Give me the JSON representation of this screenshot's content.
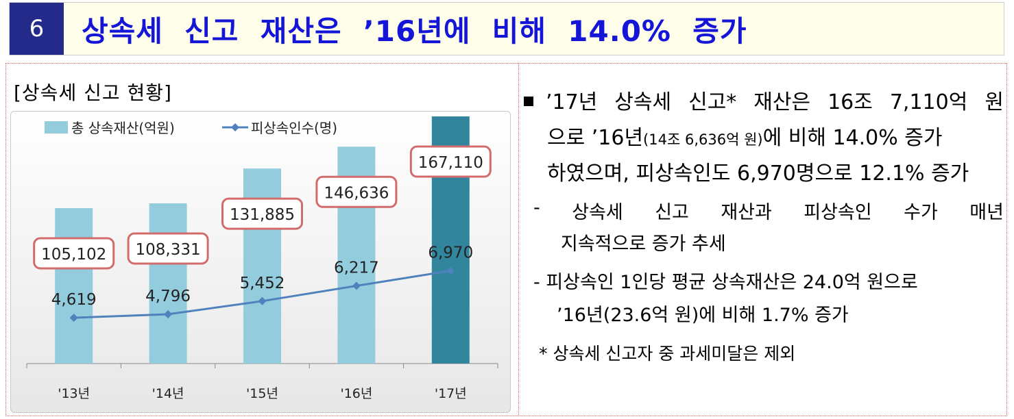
{
  "header": {
    "number": "6",
    "title": "상속세  신고  재산은  ’16년에  비해  14.0%  증가"
  },
  "chart_caption": "[상속세  신고  현황]",
  "chart_data": {
    "type": "bar",
    "categories": [
      "'13년",
      "'14년",
      "'15년",
      "'16년",
      "'17년"
    ],
    "series": [
      {
        "name": "총 상속재산(억원)",
        "type": "bar",
        "values": [
          105102,
          108331,
          131885,
          146636,
          167110
        ],
        "labels": [
          "105,102",
          "108,331",
          "131,885",
          "146,636",
          "167,110"
        ],
        "color": "#93cddd",
        "highlight_color": "#31859c"
      },
      {
        "name": "피상속인수(명)",
        "type": "line",
        "values": [
          4619,
          4796,
          5452,
          6217,
          6970
        ],
        "labels": [
          "4,619",
          "4,796",
          "5,452",
          "6,217",
          "6,970"
        ],
        "color": "#4f81bd"
      }
    ],
    "label_box_color": "#d26b6b"
  },
  "right": {
    "bullet": {
      "line1": [
        "’17년",
        "상속세",
        "신고*",
        "재산은",
        "16조",
        "7,110억",
        "원"
      ],
      "line2_a": "으로  ’16년",
      "line2_small": "(14조 6,636억 원)",
      "line2_b": "에  비해  14.0%  증가",
      "line3": "하였으며,  피상속인도  6,970명으로  12.1%  증가"
    },
    "dash1": {
      "line1": [
        "-",
        "상속세",
        "신고",
        "재산과",
        "피상속인",
        "수가",
        "매년"
      ],
      "line2": "지속적으로  증가  추세"
    },
    "dash2": {
      "line1": "-  피상속인  1인당  평균  상속재산은  24.0억  원으로",
      "line2": "’16년(23.6억  원)에  비해  1.7%  증가"
    },
    "note": "*  상속세  신고자  중  과세미달은  제외"
  }
}
